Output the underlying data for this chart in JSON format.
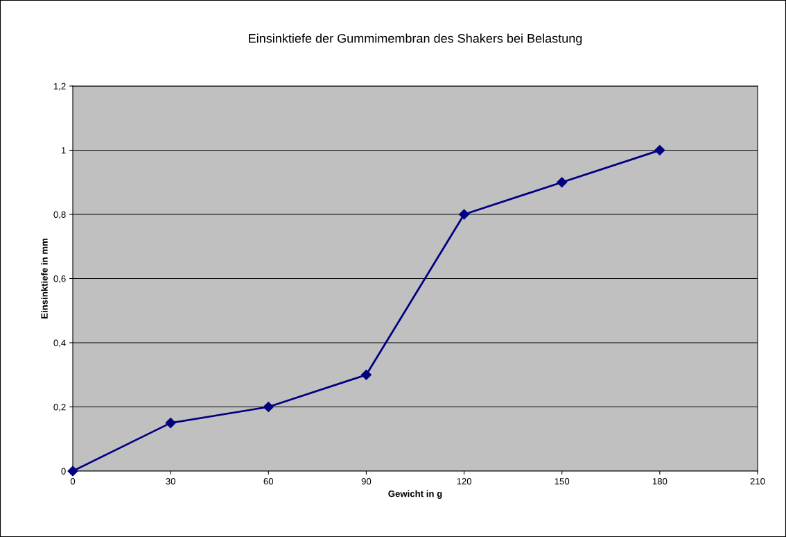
{
  "chart_data": {
    "type": "line",
    "title": "Einsinktiefe der Gummimembran des Shakers bei Belastung",
    "xlabel": "Gewicht in g",
    "ylabel": "Einsinktiefe in mm",
    "x": [
      0,
      30,
      60,
      90,
      120,
      150,
      180
    ],
    "series": [
      {
        "color": "#000080",
        "values": [
          0,
          0.15,
          0.2,
          0.3,
          0.8,
          0.9,
          1.0
        ]
      }
    ],
    "xlim": [
      0,
      210
    ],
    "xticks": [
      0,
      30,
      60,
      90,
      120,
      150,
      180,
      210
    ],
    "ylim": [
      0,
      1.2
    ],
    "yticks": [
      0,
      {
        "value": 0.2,
        "label": "0,2"
      },
      {
        "value": 0.4,
        "label": "0,4"
      },
      {
        "value": 0.6,
        "label": "0,6"
      },
      {
        "value": 0.8,
        "label": "0,8"
      },
      1,
      {
        "value": 1.2,
        "label": "1,2"
      }
    ],
    "grid": "y",
    "marker": "diamond",
    "line_style": "solid"
  }
}
